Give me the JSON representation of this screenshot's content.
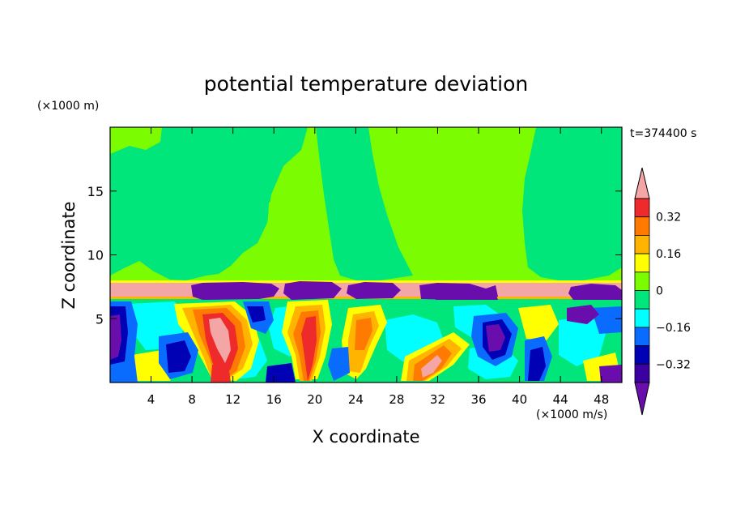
{
  "chart_data": {
    "type": "heatmap",
    "title": "potential temperature deviation",
    "xlabel": "X coordinate",
    "ylabel": "Z coordinate",
    "x_unit": "(×1000 m/s)",
    "y_unit": "(×1000 m)",
    "time_label": "t=374400 s",
    "xlim": [
      0,
      50
    ],
    "ylim": [
      0,
      20
    ],
    "x_ticks": [
      4,
      8,
      12,
      16,
      20,
      24,
      28,
      32,
      36,
      40,
      44,
      48
    ],
    "y_ticks": [
      5,
      10,
      15
    ],
    "colorbar": {
      "levels": [
        -0.4,
        -0.32,
        -0.24,
        -0.16,
        -0.08,
        0,
        0.08,
        0.16,
        0.24,
        0.32,
        0.4
      ],
      "labels": [
        "0.32",
        "0.16",
        "0",
        "−0.16",
        "−0.32"
      ],
      "colors_top_to_bottom": [
        "#f4a6a6",
        "#ee2a2a",
        "#ff7a00",
        "#ffb400",
        "#ffff00",
        "#7cfc00",
        "#00e67a",
        "#00ffff",
        "#0a6cff",
        "#0000b4",
        "#3c00a0",
        "#6a0dad"
      ]
    },
    "regions": {
      "upper_background": "#7cfc00",
      "upper_patches": "#00e67a",
      "inversion_band_z": [
        6.6,
        7.8
      ],
      "inversion_band_color": "#f4a6a6",
      "cold_caps_color": "#6a0dad",
      "boundary_layer_top": 6.6
    }
  }
}
